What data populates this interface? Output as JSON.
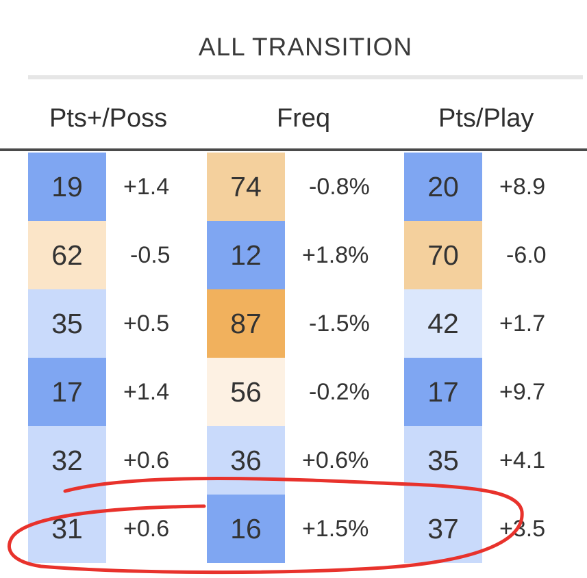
{
  "section_title": "ALL TRANSITION",
  "headers": {
    "pts_poss": "Pts+/Poss",
    "freq": "Freq",
    "pts_play": "Pts/Play"
  },
  "colors": {
    "rank_good_strong": "#7fa6f2",
    "rank_good_mid": "#a6c2f6",
    "rank_good_light": "#c9dafb",
    "rank_good_pale": "#dbe7fc",
    "rank_bad_pale": "#fdf1e3",
    "rank_bad_light": "#fbe5c8",
    "rank_bad_mid": "#f4d09d",
    "rank_bad_strong": "#f1b15d",
    "annotation_red": "#e8322c"
  },
  "rows": [
    {
      "pts_poss": {
        "rank": "19",
        "delta": "+1.4",
        "color": "#7fa6f2"
      },
      "freq": {
        "rank": "74",
        "delta": "-0.8%",
        "color": "#f4d09d"
      },
      "pts_play": {
        "rank": "20",
        "delta": "+8.9",
        "color": "#7fa6f2"
      }
    },
    {
      "pts_poss": {
        "rank": "62",
        "delta": "-0.5",
        "color": "#fbe5c8"
      },
      "freq": {
        "rank": "12",
        "delta": "+1.8%",
        "color": "#7fa6f2"
      },
      "pts_play": {
        "rank": "70",
        "delta": "-6.0",
        "color": "#f4d09d"
      }
    },
    {
      "pts_poss": {
        "rank": "35",
        "delta": "+0.5",
        "color": "#c9dafb"
      },
      "freq": {
        "rank": "87",
        "delta": "-1.5%",
        "color": "#f1b15d"
      },
      "pts_play": {
        "rank": "42",
        "delta": "+1.7",
        "color": "#dbe7fc"
      }
    },
    {
      "pts_poss": {
        "rank": "17",
        "delta": "+1.4",
        "color": "#7fa6f2"
      },
      "freq": {
        "rank": "56",
        "delta": "-0.2%",
        "color": "#fdf1e3"
      },
      "pts_play": {
        "rank": "17",
        "delta": "+9.7",
        "color": "#7fa6f2"
      }
    },
    {
      "pts_poss": {
        "rank": "32",
        "delta": "+0.6",
        "color": "#c9dafb"
      },
      "freq": {
        "rank": "36",
        "delta": "+0.6%",
        "color": "#c9dafb"
      },
      "pts_play": {
        "rank": "35",
        "delta": "+4.1",
        "color": "#c9dafb"
      }
    },
    {
      "pts_poss": {
        "rank": "31",
        "delta": "+0.6",
        "color": "#c9dafb"
      },
      "freq": {
        "rank": "16",
        "delta": "+1.5%",
        "color": "#7fa6f2"
      },
      "pts_play": {
        "rank": "37",
        "delta": "+3.5",
        "color": "#c9dafb"
      }
    }
  ]
}
